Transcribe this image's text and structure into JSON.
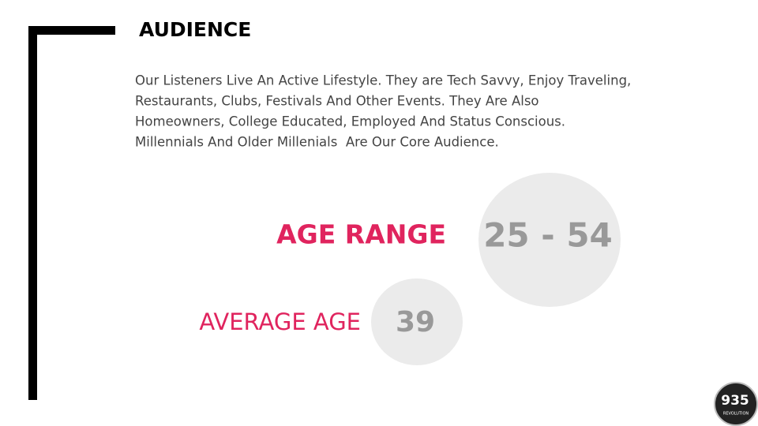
{
  "header": {
    "title": "AUDIENCE"
  },
  "body": {
    "lines": [
      "Our Listeners Live An Active Lifestyle. They are Tech Savvy, Enjoy Traveling,",
      "Restaurants, Clubs, Festivals And Other Events. They Are Also",
      "Homeowners, College Educated, Employed And Status Conscious.",
      "Millennials And Older Millenials  Are Our Core Audience."
    ]
  },
  "stats": [
    {
      "label": "AGE RANGE",
      "value": "25 - 54"
    },
    {
      "label": "AVERAGE AGE",
      "value": "39"
    }
  ],
  "logo": {
    "number": "935",
    "tagline": "REVOLUTION"
  }
}
